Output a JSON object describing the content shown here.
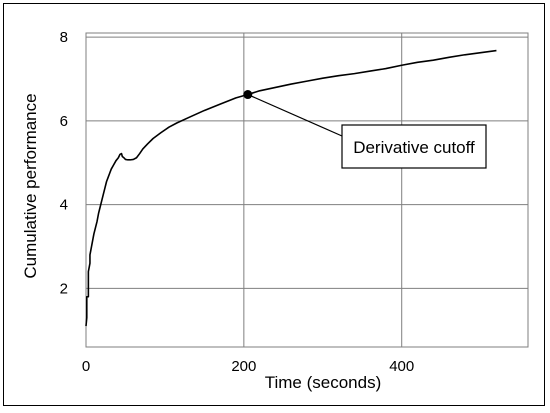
{
  "chart_data": {
    "type": "line",
    "xlabel": "Time (seconds)",
    "ylabel": "Cumulative performance",
    "xlim": [
      0,
      560
    ],
    "ylim": [
      0.6,
      8.1
    ],
    "x_ticks": [
      0,
      200,
      400
    ],
    "y_ticks": [
      2,
      4,
      6,
      8
    ],
    "grid": true,
    "line_color": "#000000",
    "series": [
      {
        "x": [
          0,
          1,
          1,
          2,
          2,
          3,
          3,
          4,
          5,
          5,
          6,
          7,
          8,
          9,
          10,
          12,
          14,
          16,
          18,
          20,
          22,
          24,
          26,
          28,
          30,
          32,
          35,
          38,
          41,
          43,
          45,
          46,
          48,
          50,
          53,
          56,
          60,
          64,
          68,
          72,
          78,
          85,
          95,
          105,
          115,
          130,
          150,
          170,
          190,
          205,
          220,
          240,
          260,
          280,
          300,
          320,
          340,
          360,
          380,
          400,
          420,
          440,
          460,
          480,
          500,
          520
        ],
        "y": [
          1.1,
          1.3,
          1.8,
          1.8,
          1.8,
          1.8,
          2.4,
          2.5,
          2.6,
          2.8,
          2.9,
          3.0,
          3.1,
          3.2,
          3.3,
          3.45,
          3.6,
          3.8,
          3.95,
          4.1,
          4.25,
          4.4,
          4.55,
          4.65,
          4.75,
          4.85,
          4.95,
          5.05,
          5.12,
          5.2,
          5.22,
          5.15,
          5.12,
          5.08,
          5.07,
          5.07,
          5.08,
          5.12,
          5.22,
          5.33,
          5.45,
          5.58,
          5.72,
          5.85,
          5.95,
          6.08,
          6.25,
          6.4,
          6.55,
          6.63,
          6.72,
          6.8,
          6.88,
          6.95,
          7.02,
          7.08,
          7.13,
          7.19,
          7.25,
          7.33,
          7.4,
          7.45,
          7.52,
          7.58,
          7.63,
          7.68
        ]
      }
    ],
    "annotation": {
      "label": "Derivative cutoff",
      "x": 205,
      "y": 6.63
    }
  }
}
